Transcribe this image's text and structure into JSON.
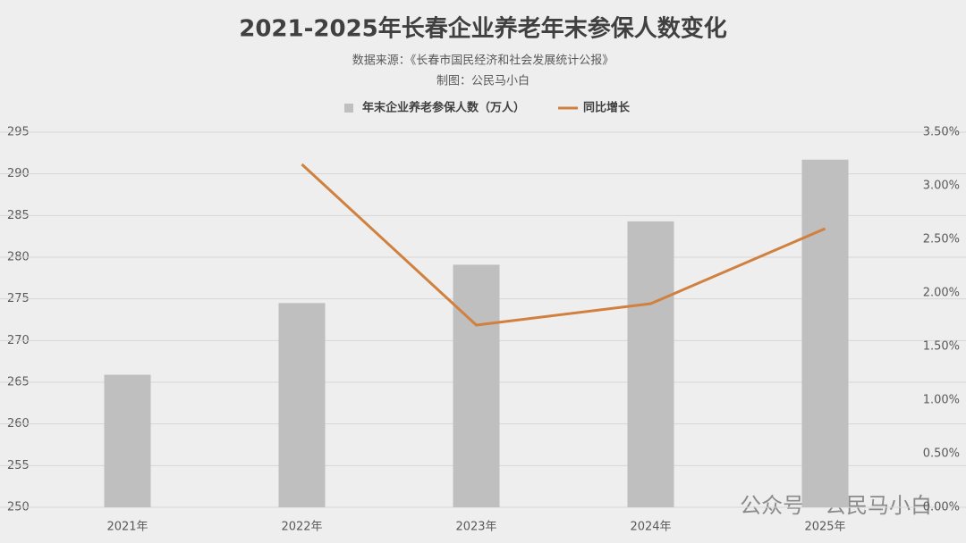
{
  "chart_data": {
    "type": "bar",
    "title": "2021-2025年长春企业养老年末参保人数变化",
    "subtitle": "数据来源：《长春市国民经济和社会发展统计公报》",
    "credit": "制图：公民马小白",
    "watermark": "公众号 · 公民马小白",
    "categories": [
      "2021年",
      "2022年",
      "2023年",
      "2024年",
      "2025年"
    ],
    "series": [
      {
        "name": "年末企业养老参保人数（万人）",
        "type": "bar",
        "color": "#bfbfbf",
        "values": [
          265.9,
          274.5,
          279.1,
          284.3,
          291.7
        ]
      },
      {
        "name": "同比增长",
        "type": "line",
        "axis": "y2",
        "color": "#d0813f",
        "values": [
          null,
          3.2,
          1.7,
          1.9,
          2.6
        ]
      }
    ],
    "ylim": [
      250,
      295
    ],
    "yticks": [
      250,
      255,
      260,
      265,
      270,
      275,
      280,
      285,
      290,
      295
    ],
    "y2lim": [
      0,
      3.5
    ],
    "y2ticks": [
      {
        "value": 0,
        "label": "0.00%"
      },
      {
        "value": 0.5,
        "label": "0.50%"
      },
      {
        "value": 1,
        "label": "1.00%"
      },
      {
        "value": 1.5,
        "label": "1.50%"
      },
      {
        "value": 2,
        "label": "2.00%"
      },
      {
        "value": 2.5,
        "label": "2.50%"
      },
      {
        "value": 3,
        "label": "3.00%"
      },
      {
        "value": 3.5,
        "label": "3.50%"
      }
    ],
    "grid": true,
    "legend": "top"
  }
}
